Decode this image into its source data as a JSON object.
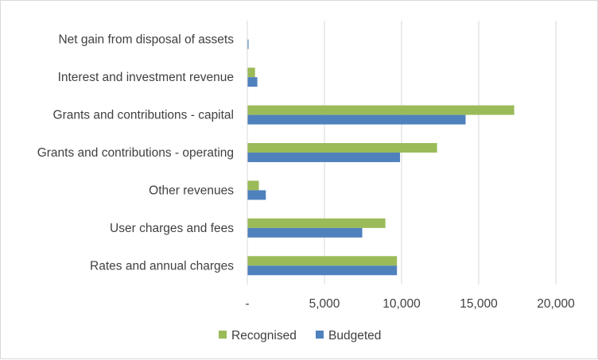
{
  "chart_data": {
    "type": "bar",
    "orientation": "horizontal",
    "title": "",
    "xlabel": "",
    "ylabel": "",
    "categories": [
      "Rates and annual charges",
      "User charges and fees",
      "Other revenues",
      "Grants and contributions - operating",
      "Grants and contributions - capital",
      "Interest and investment revenue",
      "Net gain from disposal of assets"
    ],
    "series": [
      {
        "name": "Recognised",
        "color": "#9bbb59",
        "values": [
          9700,
          8950,
          750,
          12300,
          17300,
          500,
          0
        ]
      },
      {
        "name": "Budgeted",
        "color": "#4f81bd",
        "values": [
          9700,
          7450,
          1200,
          9900,
          14150,
          650,
          80
        ]
      }
    ],
    "xlim": [
      0,
      20000
    ],
    "xticks": [
      0,
      5000,
      10000,
      15000,
      20000
    ],
    "xtick_labels": [
      "-",
      "5,000",
      "10,000",
      "15,000",
      "20,000"
    ],
    "grid": true,
    "legend_position": "bottom"
  }
}
